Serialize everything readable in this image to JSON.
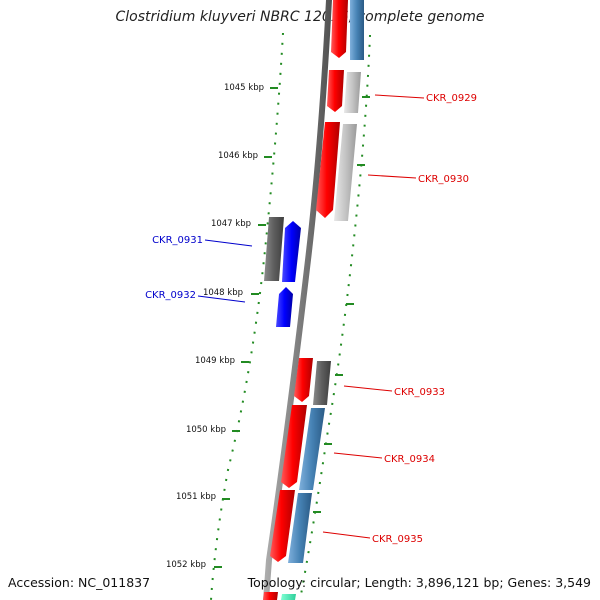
{
  "title": "Clostridium kluyveri NBRC 12016, complete genome",
  "footer": {
    "accession": "Accession: NC_011837",
    "summary": "Topology: circular; Length: 3,896,121 bp; Genes: 3,549"
  },
  "ticks": [
    "1045 kbp",
    "1046 kbp",
    "1047 kbp",
    "1048 kbp",
    "1049 kbp",
    "1050 kbp",
    "1051 kbp",
    "1052 kbp"
  ],
  "gene_labels": {
    "ckr_0929": "CKR_0929",
    "ckr_0930": "CKR_0930",
    "ckr_0931": "CKR_0931",
    "ckr_0932": "CKR_0932",
    "ckr_0933": "CKR_0933",
    "ckr_0934": "CKR_0934",
    "ckr_0935": "CKR_0935"
  },
  "colors": {
    "forward_label": "#dd0000",
    "reverse_label": "#0000cc",
    "gene_red": "#ff0000",
    "gene_blue": "#0000ff",
    "gc_green": "#228b22",
    "backbone": "#808080"
  }
}
